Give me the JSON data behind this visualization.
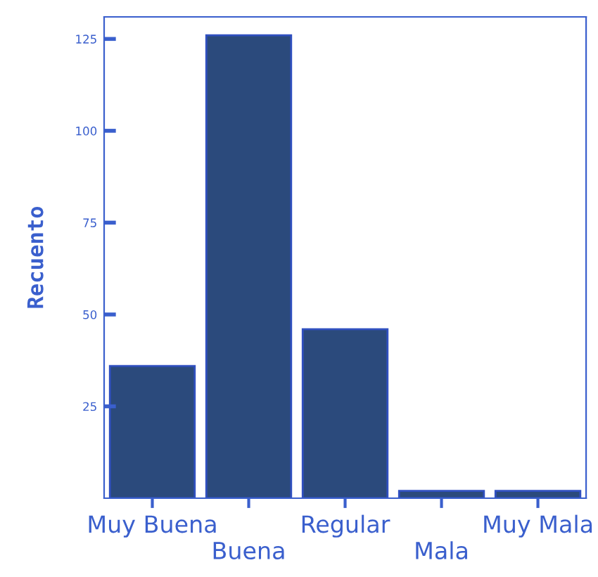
{
  "chart_data": {
    "type": "bar",
    "ylabel": "Recuento",
    "categories": [
      "Muy Buena",
      "Buena",
      "Regular",
      "Mala",
      "Muy Mala"
    ],
    "values": [
      36,
      126,
      46,
      2,
      2
    ],
    "color": "#2b4a7c",
    "ylim": [
      0,
      131
    ],
    "yticks": [
      25,
      50,
      75,
      100,
      125
    ],
    "grid": false
  }
}
